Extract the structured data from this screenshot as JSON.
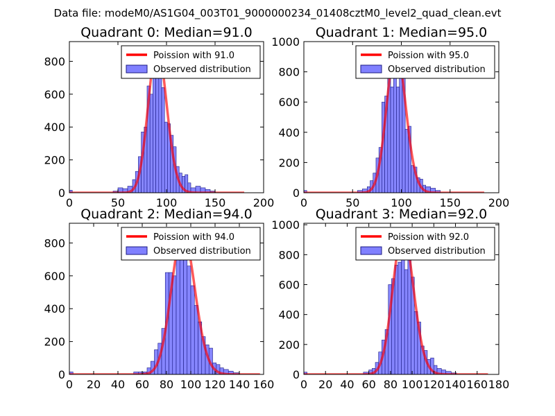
{
  "suptitle": "Data file: modeM0/AS1G04_003T01_9000000234_01408cztM0_level2_quad_clean.evt",
  "colors": {
    "hist_fill": "#8080ff",
    "hist_edge": "#1a1a80",
    "fit_line": "#ff0000"
  },
  "chart_data": [
    {
      "type": "bar",
      "title": "Quadrant 0: Median=91.0",
      "xlim": [
        0,
        200
      ],
      "ylim": [
        0,
        920
      ],
      "xticks": [
        "0",
        "50",
        "100",
        "150",
        "200"
      ],
      "yticks": [
        "0",
        "200",
        "400",
        "600",
        "800"
      ],
      "xtick_values": [
        0,
        50,
        100,
        150,
        200
      ],
      "ytick_values": [
        0,
        200,
        400,
        600,
        800
      ],
      "poisson_mean": 91,
      "poisson_scale": 885,
      "fit_range": [
        0,
        180
      ],
      "legend": {
        "fit": "Poission with 91.0",
        "hist": "Observed distribution"
      },
      "bins": [
        {
          "x0": 0,
          "x1": 3,
          "v": 15
        },
        {
          "x0": 45,
          "x1": 50,
          "v": 10
        },
        {
          "x0": 50,
          "x1": 55,
          "v": 30
        },
        {
          "x0": 55,
          "x1": 60,
          "v": 25
        },
        {
          "x0": 60,
          "x1": 65,
          "v": 40
        },
        {
          "x0": 65,
          "x1": 68,
          "v": 80
        },
        {
          "x0": 68,
          "x1": 71,
          "v": 130
        },
        {
          "x0": 71,
          "x1": 74,
          "v": 220
        },
        {
          "x0": 74,
          "x1": 77,
          "v": 370
        },
        {
          "x0": 77,
          "x1": 80,
          "v": 400
        },
        {
          "x0": 80,
          "x1": 83,
          "v": 650
        },
        {
          "x0": 83,
          "x1": 86,
          "v": 600
        },
        {
          "x0": 86,
          "x1": 89,
          "v": 880
        },
        {
          "x0": 89,
          "x1": 92,
          "v": 730
        },
        {
          "x0": 92,
          "x1": 95,
          "v": 700
        },
        {
          "x0": 95,
          "x1": 98,
          "v": 640
        },
        {
          "x0": 98,
          "x1": 101,
          "v": 430
        },
        {
          "x0": 101,
          "x1": 104,
          "v": 420
        },
        {
          "x0": 104,
          "x1": 107,
          "v": 350
        },
        {
          "x0": 107,
          "x1": 110,
          "v": 280
        },
        {
          "x0": 110,
          "x1": 113,
          "v": 160
        },
        {
          "x0": 113,
          "x1": 116,
          "v": 120
        },
        {
          "x0": 116,
          "x1": 119,
          "v": 100
        },
        {
          "x0": 119,
          "x1": 122,
          "v": 110
        },
        {
          "x0": 122,
          "x1": 125,
          "v": 60
        },
        {
          "x0": 125,
          "x1": 130,
          "v": 30
        },
        {
          "x0": 130,
          "x1": 135,
          "v": 40
        },
        {
          "x0": 135,
          "x1": 140,
          "v": 30
        },
        {
          "x0": 140,
          "x1": 145,
          "v": 20
        },
        {
          "x0": 145,
          "x1": 150,
          "v": 10
        }
      ]
    },
    {
      "type": "bar",
      "title": "Quadrant 1: Median=95.0",
      "xlim": [
        0,
        200
      ],
      "ylim": [
        0,
        1000
      ],
      "xticks": [
        "0",
        "50",
        "100",
        "150",
        "200"
      ],
      "yticks": [
        "0",
        "200",
        "400",
        "600",
        "800",
        "1000"
      ],
      "xtick_values": [
        0,
        50,
        100,
        150,
        200
      ],
      "ytick_values": [
        0,
        200,
        400,
        600,
        800,
        1000
      ],
      "poisson_mean": 95,
      "poisson_scale": 955,
      "fit_range": [
        0,
        185
      ],
      "legend": {
        "fit": "Poission with 95.0",
        "hist": "Observed distribution"
      },
      "bins": [
        {
          "x0": 0,
          "x1": 3,
          "v": 15
        },
        {
          "x0": 55,
          "x1": 60,
          "v": 15
        },
        {
          "x0": 60,
          "x1": 65,
          "v": 25
        },
        {
          "x0": 65,
          "x1": 68,
          "v": 40
        },
        {
          "x0": 68,
          "x1": 71,
          "v": 80
        },
        {
          "x0": 71,
          "x1": 74,
          "v": 130
        },
        {
          "x0": 74,
          "x1": 77,
          "v": 230
        },
        {
          "x0": 77,
          "x1": 80,
          "v": 300
        },
        {
          "x0": 80,
          "x1": 83,
          "v": 600
        },
        {
          "x0": 83,
          "x1": 86,
          "v": 640
        },
        {
          "x0": 86,
          "x1": 89,
          "v": 800
        },
        {
          "x0": 89,
          "x1": 92,
          "v": 700
        },
        {
          "x0": 92,
          "x1": 95,
          "v": 940
        },
        {
          "x0": 95,
          "x1": 98,
          "v": 700
        },
        {
          "x0": 98,
          "x1": 101,
          "v": 900
        },
        {
          "x0": 101,
          "x1": 104,
          "v": 850
        },
        {
          "x0": 104,
          "x1": 107,
          "v": 420
        },
        {
          "x0": 107,
          "x1": 110,
          "v": 440
        },
        {
          "x0": 110,
          "x1": 113,
          "v": 180
        },
        {
          "x0": 113,
          "x1": 116,
          "v": 170
        },
        {
          "x0": 116,
          "x1": 119,
          "v": 100
        },
        {
          "x0": 119,
          "x1": 122,
          "v": 90
        },
        {
          "x0": 122,
          "x1": 125,
          "v": 50
        },
        {
          "x0": 125,
          "x1": 130,
          "v": 40
        },
        {
          "x0": 130,
          "x1": 135,
          "v": 30
        },
        {
          "x0": 135,
          "x1": 140,
          "v": 15
        }
      ]
    },
    {
      "type": "bar",
      "title": "Quadrant 2: Median=94.0",
      "xlim": [
        0,
        160
      ],
      "ylim": [
        0,
        920
      ],
      "xticks": [
        "0",
        "20",
        "40",
        "60",
        "80",
        "100",
        "120",
        "140",
        "160"
      ],
      "yticks": [
        "0",
        "200",
        "400",
        "600",
        "800"
      ],
      "xtick_values": [
        0,
        20,
        40,
        60,
        80,
        100,
        120,
        140,
        160
      ],
      "ytick_values": [
        0,
        200,
        400,
        600,
        800
      ],
      "poisson_mean": 94,
      "poisson_scale": 860,
      "fit_range": [
        0,
        157
      ],
      "legend": {
        "fit": "Poission with 94.0",
        "hist": "Observed distribution"
      },
      "bins": [
        {
          "x0": 0,
          "x1": 3,
          "v": 15
        },
        {
          "x0": 53,
          "x1": 57,
          "v": 15
        },
        {
          "x0": 57,
          "x1": 61,
          "v": 15
        },
        {
          "x0": 61,
          "x1": 64,
          "v": 15
        },
        {
          "x0": 64,
          "x1": 67,
          "v": 40
        },
        {
          "x0": 67,
          "x1": 70,
          "v": 80
        },
        {
          "x0": 70,
          "x1": 73,
          "v": 150
        },
        {
          "x0": 73,
          "x1": 76,
          "v": 190
        },
        {
          "x0": 76,
          "x1": 79,
          "v": 280
        },
        {
          "x0": 79,
          "x1": 82,
          "v": 620
        },
        {
          "x0": 82,
          "x1": 85,
          "v": 620
        },
        {
          "x0": 85,
          "x1": 88,
          "v": 600
        },
        {
          "x0": 88,
          "x1": 91,
          "v": 750
        },
        {
          "x0": 91,
          "x1": 94,
          "v": 830
        },
        {
          "x0": 94,
          "x1": 97,
          "v": 860
        },
        {
          "x0": 97,
          "x1": 100,
          "v": 660
        },
        {
          "x0": 100,
          "x1": 103,
          "v": 540
        },
        {
          "x0": 103,
          "x1": 106,
          "v": 420
        },
        {
          "x0": 106,
          "x1": 109,
          "v": 320
        },
        {
          "x0": 109,
          "x1": 112,
          "v": 230
        },
        {
          "x0": 112,
          "x1": 115,
          "v": 180
        },
        {
          "x0": 115,
          "x1": 118,
          "v": 160
        },
        {
          "x0": 118,
          "x1": 121,
          "v": 70
        },
        {
          "x0": 121,
          "x1": 124,
          "v": 60
        },
        {
          "x0": 124,
          "x1": 127,
          "v": 40
        },
        {
          "x0": 127,
          "x1": 131,
          "v": 30
        },
        {
          "x0": 131,
          "x1": 135,
          "v": 20
        },
        {
          "x0": 135,
          "x1": 140,
          "v": 10
        }
      ]
    },
    {
      "type": "bar",
      "title": "Quadrant 3: Median=92.0",
      "xlim": [
        0,
        180
      ],
      "ylim": [
        0,
        1010
      ],
      "xticks": [
        "0",
        "20",
        "40",
        "60",
        "80",
        "100",
        "120",
        "140",
        "160",
        "180"
      ],
      "yticks": [
        "0",
        "200",
        "400",
        "600",
        "800",
        "1000"
      ],
      "xtick_values": [
        0,
        20,
        40,
        60,
        80,
        100,
        120,
        140,
        160,
        180
      ],
      "ytick_values": [
        0,
        200,
        400,
        600,
        800,
        1000
      ],
      "poisson_mean": 92,
      "poisson_scale": 950,
      "fit_range": [
        0,
        170
      ],
      "legend": {
        "fit": "Poission with 92.0",
        "hist": "Observed distribution"
      },
      "bins": [
        {
          "x0": 0,
          "x1": 3,
          "v": 15
        },
        {
          "x0": 55,
          "x1": 60,
          "v": 15
        },
        {
          "x0": 60,
          "x1": 63,
          "v": 30
        },
        {
          "x0": 63,
          "x1": 66,
          "v": 40
        },
        {
          "x0": 66,
          "x1": 69,
          "v": 80
        },
        {
          "x0": 69,
          "x1": 72,
          "v": 150
        },
        {
          "x0": 72,
          "x1": 75,
          "v": 230
        },
        {
          "x0": 75,
          "x1": 78,
          "v": 300
        },
        {
          "x0": 78,
          "x1": 81,
          "v": 600
        },
        {
          "x0": 81,
          "x1": 84,
          "v": 640
        },
        {
          "x0": 84,
          "x1": 87,
          "v": 730
        },
        {
          "x0": 87,
          "x1": 90,
          "v": 750
        },
        {
          "x0": 90,
          "x1": 93,
          "v": 940
        },
        {
          "x0": 93,
          "x1": 96,
          "v": 700
        },
        {
          "x0": 96,
          "x1": 99,
          "v": 950
        },
        {
          "x0": 99,
          "x1": 102,
          "v": 650
        },
        {
          "x0": 102,
          "x1": 105,
          "v": 420
        },
        {
          "x0": 105,
          "x1": 108,
          "v": 350
        },
        {
          "x0": 108,
          "x1": 111,
          "v": 190
        },
        {
          "x0": 111,
          "x1": 114,
          "v": 160
        },
        {
          "x0": 114,
          "x1": 117,
          "v": 100
        },
        {
          "x0": 117,
          "x1": 120,
          "v": 110
        },
        {
          "x0": 120,
          "x1": 123,
          "v": 60
        },
        {
          "x0": 123,
          "x1": 127,
          "v": 40
        },
        {
          "x0": 127,
          "x1": 131,
          "v": 30
        },
        {
          "x0": 131,
          "x1": 136,
          "v": 20
        },
        {
          "x0": 136,
          "x1": 141,
          "v": 10
        }
      ]
    }
  ]
}
